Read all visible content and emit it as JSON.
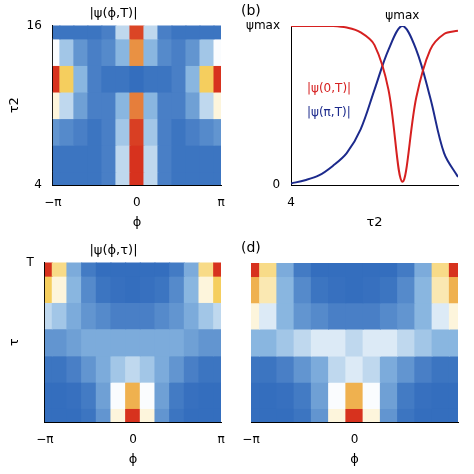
{
  "chart_data": [
    {
      "type": "heatmap",
      "title": "|ψ(ϕ,T)|",
      "xlabel": "ϕ",
      "ylabel": "τ2",
      "x": [
        -3.1416,
        -2.618,
        -2.0944,
        -1.5708,
        -1.0472,
        -0.5236,
        0,
        0.5236,
        1.0472,
        1.5708,
        2.0944,
        2.618,
        3.1416
      ],
      "y": [
        4,
        6,
        8,
        10,
        12,
        14,
        16
      ],
      "z": [
        [
          0.05,
          0.05,
          0.05,
          0.05,
          0.1,
          0.45,
          1,
          0.45,
          0.1,
          0.05,
          0.05,
          0.05,
          0.05
        ],
        [
          0.05,
          0.05,
          0.05,
          0.05,
          0.1,
          0.45,
          1,
          0.45,
          0.1,
          0.05,
          0.05,
          0.05,
          0.05
        ],
        [
          0.2,
          0.15,
          0.1,
          0.05,
          0.1,
          0.4,
          0.98,
          0.4,
          0.1,
          0.05,
          0.1,
          0.15,
          0.2
        ],
        [
          0.6,
          0.45,
          0.25,
          0.1,
          0.1,
          0.35,
          0.88,
          0.35,
          0.1,
          0.1,
          0.25,
          0.45,
          0.6
        ],
        [
          1,
          0.75,
          0.35,
          0.1,
          0.05,
          0.05,
          0.02,
          0.05,
          0.05,
          0.1,
          0.35,
          0.75,
          1
        ],
        [
          0.55,
          0.4,
          0.2,
          0.1,
          0.15,
          0.35,
          0.85,
          0.35,
          0.15,
          0.1,
          0.2,
          0.4,
          0.55
        ],
        [
          0.05,
          0.05,
          0.05,
          0.05,
          0.1,
          0.45,
          0.97,
          0.45,
          0.1,
          0.05,
          0.05,
          0.05,
          0.05
        ]
      ],
      "xlim": [
        -3.1416,
        3.1416
      ],
      "ylim": [
        4,
        16
      ],
      "xticks": [
        {
          "value": -3.1416,
          "label": "−π"
        },
        0,
        {
          "value": 3.1416,
          "label": "π"
        }
      ],
      "yticks": [
        4,
        16
      ],
      "grid": false
    },
    {
      "type": "line",
      "panel": "(b)",
      "xlabel": "τ2",
      "x": [
        4,
        5,
        6,
        7,
        8,
        9,
        10,
        11,
        12,
        13,
        14,
        15,
        16
      ],
      "series": [
        {
          "name": "|ψ(0,T)|",
          "color": "#d62020",
          "values": [
            1,
            1,
            1,
            1,
            0.99,
            0.96,
            0.88,
            0.6,
            0.02,
            0.55,
            0.85,
            0.95,
            0.97
          ]
        },
        {
          "name": "|ψ(π,T)|",
          "color": "#1c2a8c",
          "values": [
            0.01,
            0.03,
            0.06,
            0.12,
            0.2,
            0.35,
            0.6,
            0.85,
            1,
            0.85,
            0.55,
            0.2,
            0.05
          ]
        }
      ],
      "xlim": [
        4,
        16
      ],
      "xticks": [
        4
      ],
      "ylim": [
        0,
        1
      ],
      "yticks": [
        0,
        {
          "value": 1,
          "label": "ψmax"
        }
      ],
      "annotations": [
        {
          "text": "ψmax",
          "x": 12,
          "y": 1
        }
      ],
      "grid": false,
      "legend": false
    },
    {
      "type": "heatmap",
      "title": "|ψ(ϕ,τ)|",
      "xlabel": "ϕ",
      "ylabel": "τ",
      "x": [
        -3.1416,
        -2.618,
        -2.0944,
        -1.5708,
        -1.0472,
        -0.5236,
        0,
        0.5236,
        1.0472,
        1.5708,
        2.0944,
        2.618,
        3.1416
      ],
      "y": [
        0,
        0.17,
        0.33,
        0.5,
        0.67,
        0.83,
        1
      ],
      "z": [
        [
          0.02,
          0.02,
          0.02,
          0.05,
          0.2,
          0.6,
          1,
          0.6,
          0.2,
          0.05,
          0.02,
          0.02,
          0.02
        ],
        [
          0.02,
          0.02,
          0.03,
          0.08,
          0.25,
          0.55,
          0.8,
          0.55,
          0.25,
          0.08,
          0.03,
          0.02,
          0.02
        ],
        [
          0.05,
          0.05,
          0.1,
          0.2,
          0.3,
          0.4,
          0.45,
          0.4,
          0.3,
          0.2,
          0.1,
          0.05,
          0.05
        ],
        [
          0.2,
          0.2,
          0.25,
          0.3,
          0.3,
          0.3,
          0.3,
          0.3,
          0.3,
          0.3,
          0.25,
          0.2,
          0.2
        ],
        [
          0.45,
          0.4,
          0.3,
          0.2,
          0.15,
          0.1,
          0.1,
          0.1,
          0.15,
          0.2,
          0.3,
          0.4,
          0.45
        ],
        [
          0.75,
          0.6,
          0.35,
          0.15,
          0.05,
          0.03,
          0.02,
          0.03,
          0.05,
          0.15,
          0.35,
          0.6,
          0.75
        ],
        [
          1,
          0.7,
          0.3,
          0.08,
          0.02,
          0.02,
          0.02,
          0.02,
          0.02,
          0.08,
          0.3,
          0.7,
          1
        ]
      ],
      "xlim": [
        -3.1416,
        3.1416
      ],
      "ylim": [
        0,
        1
      ],
      "xticks": [
        {
          "value": -3.1416,
          "label": "−π"
        },
        0,
        {
          "value": 3.1416,
          "label": "π"
        }
      ],
      "yticks": [
        {
          "value": 1,
          "label": "T"
        }
      ],
      "grid": false
    },
    {
      "type": "heatmap",
      "panel": "(d)",
      "xlabel": "ϕ",
      "x": [
        -3.1416,
        -2.618,
        -2.0944,
        -1.5708,
        -1.0472,
        -0.5236,
        0,
        0.5236,
        1.0472,
        1.5708,
        2.0944,
        2.618,
        3.1416
      ],
      "y": [
        0,
        0.17,
        0.33,
        0.5,
        0.67,
        0.83,
        1
      ],
      "z": [
        [
          0.02,
          0.02,
          0.02,
          0.05,
          0.2,
          0.6,
          1,
          0.6,
          0.2,
          0.05,
          0.02,
          0.02,
          0.02
        ],
        [
          0.02,
          0.02,
          0.03,
          0.08,
          0.25,
          0.55,
          0.8,
          0.55,
          0.25,
          0.08,
          0.03,
          0.02,
          0.02
        ],
        [
          0.05,
          0.05,
          0.1,
          0.2,
          0.3,
          0.45,
          0.5,
          0.45,
          0.3,
          0.2,
          0.1,
          0.05,
          0.05
        ],
        [
          0.35,
          0.35,
          0.4,
          0.45,
          0.5,
          0.5,
          0.45,
          0.5,
          0.5,
          0.45,
          0.4,
          0.35,
          0.35
        ],
        [
          0.6,
          0.5,
          0.35,
          0.2,
          0.15,
          0.1,
          0.1,
          0.1,
          0.15,
          0.2,
          0.35,
          0.5,
          0.6
        ],
        [
          0.8,
          0.65,
          0.35,
          0.15,
          0.05,
          0.03,
          0.02,
          0.03,
          0.05,
          0.15,
          0.35,
          0.65,
          0.8
        ],
        [
          1,
          0.7,
          0.3,
          0.08,
          0.02,
          0.02,
          0.02,
          0.02,
          0.02,
          0.08,
          0.3,
          0.7,
          1
        ]
      ],
      "xlim": [
        -3.1416,
        3.1416
      ],
      "ylim": [
        0,
        1
      ],
      "xticks": [
        {
          "value": -3.1416,
          "label": "−π"
        },
        0
      ],
      "tick_labels": "x",
      "grid": false
    }
  ]
}
